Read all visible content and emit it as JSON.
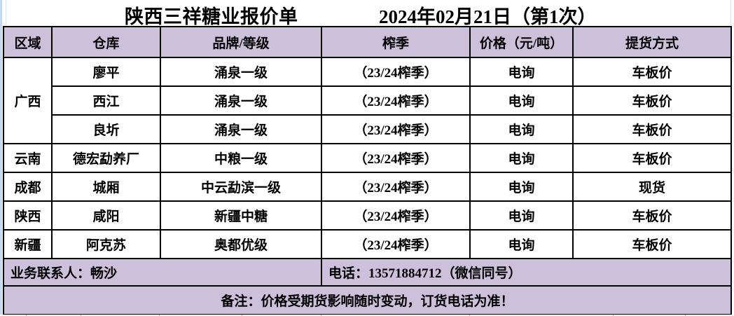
{
  "title": {
    "company": "陕西三祥糖业报价单",
    "date": "2024年02月21日（第1次）"
  },
  "colors": {
    "header_bg": "#ccc0da",
    "footer_bg": "#ccc0da",
    "border": "#000000",
    "left_edge_strip": "#c6d9f0",
    "faint_gridline": "#dbe5f1",
    "text": "#000000"
  },
  "table": {
    "headers": [
      "区域",
      "仓库",
      "品牌/等级",
      "榨季",
      "价格（元/吨）",
      "提货方式"
    ],
    "rows": [
      {
        "region": "广西",
        "region_span": 3,
        "warehouse": "廖平",
        "brand": "涌泉一级",
        "season": "（23/24榨季）",
        "price": "电询",
        "delivery": "车板价"
      },
      {
        "warehouse": "西江",
        "brand": "涌泉一级",
        "season": "（23/24榨季）",
        "price": "电询",
        "delivery": "车板价"
      },
      {
        "warehouse": "良圻",
        "brand": "涌泉一级",
        "season": "（23/24榨季）",
        "price": "电询",
        "delivery": "车板价"
      },
      {
        "region": "云南",
        "region_span": 1,
        "warehouse": "德宏勐养厂",
        "brand": "中粮一级",
        "season": "（23/24榨季）",
        "price": "电询",
        "delivery": "车板价"
      },
      {
        "region": "成都",
        "region_span": 1,
        "warehouse": "城厢",
        "brand": "中云勐滨一级",
        "season": "（23/24榨季）",
        "price": "电询",
        "delivery": "现货"
      },
      {
        "region": "陕西",
        "region_span": 1,
        "warehouse": "咸阳",
        "brand": "新疆中糖",
        "season": "（23/24榨季）",
        "price": "电询",
        "delivery": "车板价"
      },
      {
        "region": "新疆",
        "region_span": 1,
        "warehouse": "阿克苏",
        "brand": "奥都优级",
        "season": "（23/24榨季）",
        "price": "电询",
        "delivery": "车板价"
      }
    ]
  },
  "footer": {
    "contact": "业务联系人：畅沙",
    "phone": "电话：13571884712（微信同号）",
    "remark": "备注：价格受期货影响随时变动，订货电话为准！"
  }
}
